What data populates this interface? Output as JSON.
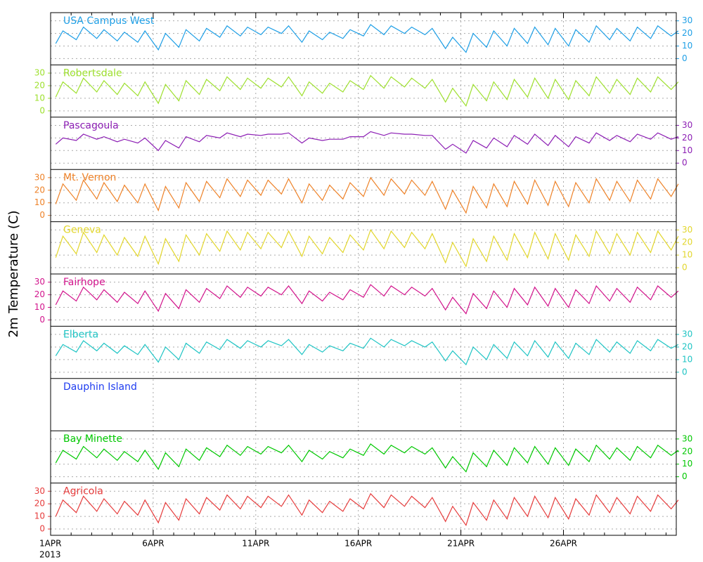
{
  "chart_data": {
    "type": "line",
    "ylabel": "2m Temperature (C)",
    "x_year_label": "2013",
    "xlim": [
      0,
      30.5
    ],
    "xticks": [
      {
        "value": 0,
        "label": "1APR"
      },
      {
        "value": 5,
        "label": "6APR"
      },
      {
        "value": 10,
        "label": "11APR"
      },
      {
        "value": 15,
        "label": "16APR"
      },
      {
        "value": 20,
        "label": "21APR"
      },
      {
        "value": 25,
        "label": "26APR"
      }
    ],
    "xminorticks": [
      1,
      2,
      3,
      4,
      6,
      7,
      8,
      9,
      11,
      12,
      13,
      14,
      16,
      17,
      18,
      19,
      21,
      22,
      23,
      24,
      26,
      27,
      28,
      29,
      30
    ],
    "ylim": [
      -5,
      36.5
    ],
    "yticks": [
      0,
      10,
      20,
      30
    ],
    "grid": true,
    "x": [
      0.25,
      0.6,
      1.25,
      1.6,
      2.25,
      2.6,
      3.25,
      3.6,
      4.25,
      4.6,
      5.25,
      5.6,
      6.25,
      6.6,
      7.25,
      7.6,
      8.25,
      8.6,
      9.25,
      9.6,
      10.25,
      10.6,
      11.25,
      11.6,
      12.25,
      12.6,
      13.25,
      13.6,
      14.25,
      14.6,
      15.25,
      15.6,
      16.25,
      16.6,
      17.25,
      17.6,
      18.25,
      18.6,
      19.25,
      19.6,
      20.25,
      20.6,
      21.25,
      21.6,
      22.25,
      22.6,
      23.25,
      23.6,
      24.25,
      24.6,
      25.25,
      25.6,
      26.25,
      26.6,
      27.25,
      27.6,
      28.25,
      28.6,
      29.25,
      29.6,
      30.25,
      30.6
    ],
    "series": [
      {
        "name": "USA Campus West",
        "color": "#1e9fe6",
        "axis_side": "right",
        "values": [
          12,
          22,
          15,
          25,
          16,
          23,
          14,
          21,
          13,
          22,
          7,
          20,
          9,
          23,
          14,
          24,
          17,
          26,
          18,
          25,
          19,
          25,
          20,
          26,
          13,
          22,
          15,
          21,
          16,
          23,
          18,
          27,
          19,
          26,
          20,
          25,
          19,
          24,
          8,
          17,
          5,
          20,
          9,
          22,
          10,
          24,
          12,
          25,
          11,
          24,
          10,
          23,
          13,
          26,
          15,
          24,
          14,
          25,
          16,
          26,
          18,
          22
        ]
      },
      {
        "name": "Robertsdale",
        "color": "#9ee02e",
        "axis_side": "left",
        "values": [
          11,
          23,
          14,
          26,
          15,
          24,
          13,
          22,
          12,
          23,
          6,
          21,
          8,
          24,
          13,
          25,
          16,
          27,
          17,
          26,
          18,
          26,
          19,
          27,
          12,
          23,
          14,
          22,
          15,
          24,
          17,
          28,
          18,
          27,
          19,
          26,
          18,
          25,
          7,
          18,
          4,
          21,
          8,
          23,
          9,
          25,
          11,
          26,
          10,
          25,
          9,
          24,
          12,
          27,
          14,
          25,
          13,
          26,
          15,
          27,
          17,
          23
        ]
      },
      {
        "name": "Pascagoula",
        "color": "#8c1eb4",
        "axis_side": "right",
        "values": [
          15,
          20,
          18,
          23,
          19,
          21,
          17,
          19,
          16,
          20,
          10,
          18,
          12,
          21,
          17,
          22,
          20,
          24,
          21,
          23,
          22,
          23,
          23,
          24,
          16,
          20,
          18,
          19,
          19,
          21,
          21,
          25,
          22,
          24,
          23,
          23,
          22,
          22,
          11,
          15,
          8,
          18,
          12,
          20,
          13,
          22,
          15,
          23,
          14,
          22,
          13,
          21,
          16,
          24,
          18,
          22,
          17,
          23,
          19,
          24,
          19,
          21
        ]
      },
      {
        "name": "Mt. Vernon",
        "color": "#ee8228",
        "axis_side": "left",
        "values": [
          9,
          25,
          12,
          28,
          13,
          26,
          11,
          24,
          10,
          25,
          4,
          23,
          6,
          26,
          11,
          27,
          14,
          29,
          15,
          28,
          16,
          28,
          17,
          29,
          10,
          25,
          12,
          24,
          13,
          26,
          15,
          30,
          16,
          29,
          17,
          28,
          16,
          27,
          5,
          20,
          2,
          23,
          6,
          25,
          7,
          27,
          9,
          28,
          8,
          27,
          7,
          26,
          10,
          29,
          12,
          27,
          11,
          28,
          13,
          29,
          15,
          25
        ]
      },
      {
        "name": "Geneva",
        "color": "#e2d62c",
        "axis_side": "right",
        "values": [
          8,
          25,
          11,
          28,
          12,
          26,
          10,
          24,
          9,
          25,
          3,
          23,
          5,
          26,
          10,
          27,
          13,
          29,
          14,
          28,
          15,
          28,
          16,
          29,
          9,
          25,
          11,
          24,
          12,
          26,
          14,
          30,
          15,
          29,
          16,
          28,
          15,
          27,
          4,
          20,
          1,
          23,
          5,
          25,
          6,
          27,
          8,
          28,
          7,
          27,
          6,
          26,
          9,
          29,
          11,
          27,
          10,
          28,
          12,
          29,
          14,
          25
        ]
      },
      {
        "name": "Fairhope",
        "color": "#d2148c",
        "axis_side": "left",
        "values": [
          12,
          23,
          15,
          26,
          16,
          24,
          14,
          22,
          13,
          23,
          7,
          21,
          9,
          24,
          14,
          25,
          17,
          27,
          18,
          26,
          19,
          26,
          20,
          27,
          13,
          23,
          15,
          22,
          16,
          24,
          18,
          28,
          19,
          27,
          20,
          26,
          19,
          25,
          8,
          18,
          5,
          21,
          9,
          23,
          10,
          25,
          12,
          26,
          11,
          25,
          10,
          24,
          13,
          27,
          15,
          25,
          14,
          26,
          16,
          27,
          18,
          23
        ]
      },
      {
        "name": "Elberta",
        "color": "#1ec4c4",
        "axis_side": "right",
        "values": [
          13,
          22,
          16,
          25,
          17,
          23,
          15,
          21,
          14,
          22,
          8,
          20,
          10,
          23,
          15,
          24,
          18,
          26,
          19,
          25,
          20,
          25,
          21,
          26,
          14,
          22,
          16,
          21,
          17,
          23,
          19,
          27,
          20,
          26,
          21,
          25,
          20,
          24,
          9,
          17,
          6,
          20,
          10,
          22,
          11,
          24,
          13,
          25,
          12,
          24,
          11,
          23,
          14,
          26,
          16,
          24,
          15,
          25,
          17,
          26,
          19,
          22
        ]
      },
      {
        "name": "Dauphin Island",
        "color": "#1e3cf0",
        "values": [
          null,
          null,
          null,
          null,
          null,
          null,
          null,
          null,
          null,
          null,
          null,
          null,
          null,
          null,
          null,
          null,
          null,
          null,
          null,
          null,
          null,
          null,
          null,
          null,
          null,
          null,
          null,
          null,
          null,
          null,
          null,
          null,
          null,
          null,
          null,
          null,
          null,
          null,
          null,
          null,
          null,
          null,
          null,
          null,
          null,
          null,
          null,
          null,
          null,
          null,
          null,
          null,
          null,
          null,
          null,
          null,
          null,
          null,
          null,
          null,
          null,
          null
        ]
      },
      {
        "name": "Bay Minette",
        "color": "#00c800",
        "axis_side": "right",
        "values": [
          11,
          21,
          14,
          24,
          15,
          22,
          13,
          20,
          12,
          21,
          6,
          19,
          8,
          22,
          13,
          23,
          16,
          25,
          17,
          24,
          18,
          24,
          19,
          25,
          12,
          21,
          14,
          20,
          15,
          22,
          17,
          26,
          18,
          25,
          19,
          24,
          18,
          23,
          7,
          16,
          4,
          19,
          8,
          21,
          9,
          23,
          11,
          24,
          10,
          23,
          9,
          22,
          12,
          25,
          14,
          23,
          13,
          24,
          15,
          25,
          17,
          21
        ]
      },
      {
        "name": "Agricola",
        "color": "#e63c3c",
        "axis_side": "left",
        "values": [
          10,
          23,
          13,
          26,
          14,
          24,
          12,
          22,
          11,
          23,
          5,
          21,
          7,
          24,
          12,
          25,
          15,
          27,
          16,
          26,
          17,
          26,
          18,
          27,
          11,
          23,
          13,
          22,
          14,
          24,
          16,
          28,
          17,
          27,
          18,
          26,
          17,
          25,
          6,
          18,
          3,
          21,
          7,
          23,
          8,
          25,
          10,
          26,
          9,
          25,
          8,
          24,
          11,
          27,
          13,
          25,
          12,
          26,
          14,
          27,
          16,
          23
        ]
      }
    ]
  }
}
